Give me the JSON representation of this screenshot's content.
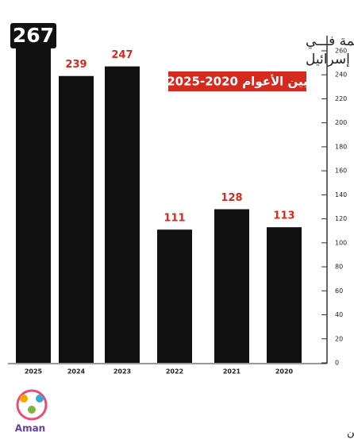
{
  "chart_data": {
    "type": "bar",
    "title": [
      "ضحايا العنف والجريمة فـــي",
      "المجتمع العربي في إسرائيل"
    ],
    "subtitle": "بين الأعوام 2020-2025",
    "categories": [
      "2025",
      "2024",
      "2023",
      "2022",
      "2021",
      "2020"
    ],
    "values": [
      267,
      239,
      247,
      111,
      128,
      113
    ],
    "color": "#111111",
    "label_color": "#d42a20",
    "ylim": [
      0,
      260
    ],
    "yticks": [
      0,
      20,
      40,
      60,
      80,
      100,
      120,
      140,
      160,
      180,
      200,
      220,
      240,
      260
    ],
    "source": "مركز أمان- المركز العربي للمجتمع الآمن",
    "logo": "Aman"
  }
}
